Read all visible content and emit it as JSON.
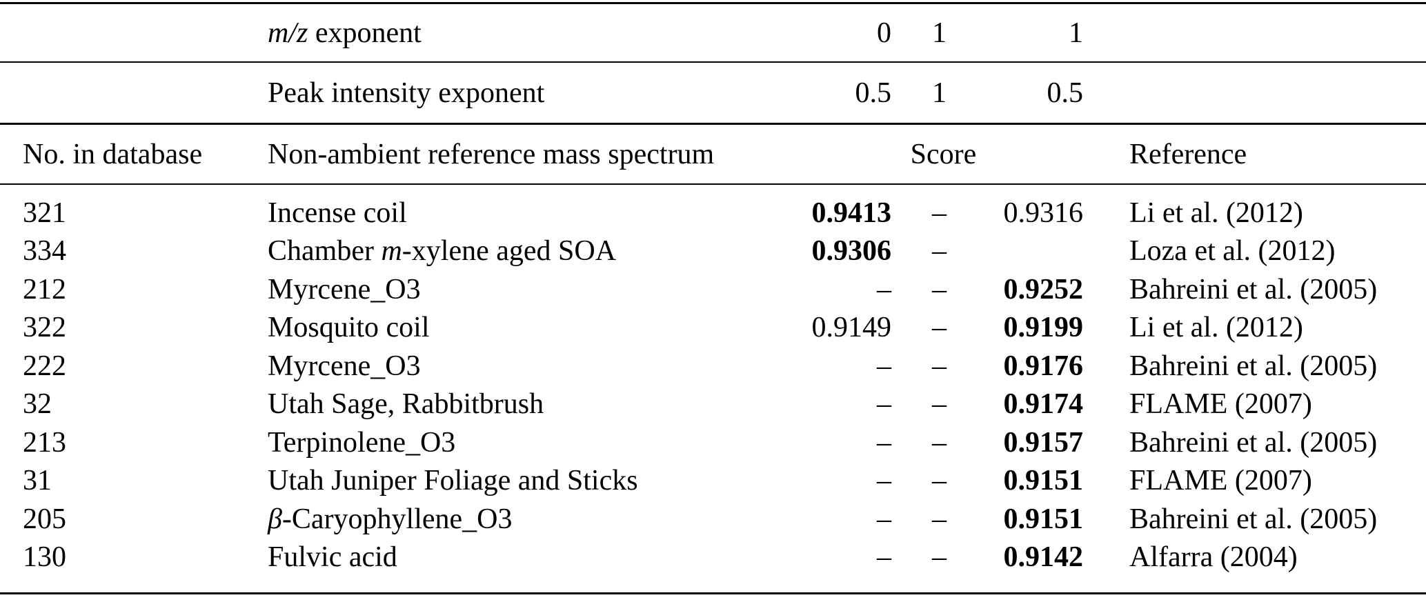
{
  "table": {
    "background": "#ffffff",
    "text_color": "#000000",
    "exponent_rows": [
      {
        "name": "mz-exponent",
        "label_segments": [
          [
            "i",
            "m/z"
          ],
          [
            "r",
            " exponent"
          ]
        ],
        "values": [
          "0",
          "1",
          "1"
        ]
      },
      {
        "name": "peak-intensity-exponent",
        "label_segments": [
          [
            "r",
            "Peak intensity exponent"
          ]
        ],
        "values": [
          "0.5",
          "1",
          "0.5"
        ]
      }
    ],
    "columns": {
      "no": "No. in database",
      "spectrum": "Non-ambient reference mass spectrum",
      "score": "Score",
      "reference": "Reference"
    },
    "rows": [
      {
        "no": "321",
        "spectrum": [
          [
            "r",
            "Incense coil"
          ]
        ],
        "scores": [
          {
            "v": "0.9413",
            "bold": true
          },
          {
            "v": "–",
            "bold": false
          },
          {
            "v": "0.9316",
            "bold": false
          }
        ],
        "reference": "Li et al. (2012)"
      },
      {
        "no": "334",
        "spectrum": [
          [
            "r",
            "Chamber "
          ],
          [
            "i",
            "m"
          ],
          [
            "r",
            "-xylene aged SOA"
          ]
        ],
        "scores": [
          {
            "v": "0.9306",
            "bold": true
          },
          {
            "v": "–",
            "bold": false
          },
          {
            "v": "",
            "bold": false
          }
        ],
        "reference": "Loza et al. (2012)"
      },
      {
        "no": "212",
        "spectrum": [
          [
            "r",
            "Myrcene_O3"
          ]
        ],
        "scores": [
          {
            "v": "–",
            "bold": false
          },
          {
            "v": "–",
            "bold": false
          },
          {
            "v": "0.9252",
            "bold": true
          }
        ],
        "reference": "Bahreini et al. (2005)"
      },
      {
        "no": "322",
        "spectrum": [
          [
            "r",
            "Mosquito coil"
          ]
        ],
        "scores": [
          {
            "v": "0.9149",
            "bold": false
          },
          {
            "v": "–",
            "bold": false
          },
          {
            "v": "0.9199",
            "bold": true
          }
        ],
        "reference": "Li et al. (2012)"
      },
      {
        "no": "222",
        "spectrum": [
          [
            "r",
            "Myrcene_O3"
          ]
        ],
        "scores": [
          {
            "v": "–",
            "bold": false
          },
          {
            "v": "–",
            "bold": false
          },
          {
            "v": "0.9176",
            "bold": true
          }
        ],
        "reference": "Bahreini et al. (2005)"
      },
      {
        "no": "32",
        "spectrum": [
          [
            "r",
            "Utah Sage, Rabbitbrush"
          ]
        ],
        "scores": [
          {
            "v": "–",
            "bold": false
          },
          {
            "v": "–",
            "bold": false
          },
          {
            "v": "0.9174",
            "bold": true
          }
        ],
        "reference": "FLAME (2007)"
      },
      {
        "no": "213",
        "spectrum": [
          [
            "r",
            "Terpinolene_O3"
          ]
        ],
        "scores": [
          {
            "v": "–",
            "bold": false
          },
          {
            "v": "–",
            "bold": false
          },
          {
            "v": "0.9157",
            "bold": true
          }
        ],
        "reference": "Bahreini et al. (2005)"
      },
      {
        "no": "31",
        "spectrum": [
          [
            "r",
            "Utah Juniper Foliage and Sticks"
          ]
        ],
        "scores": [
          {
            "v": "–",
            "bold": false
          },
          {
            "v": "–",
            "bold": false
          },
          {
            "v": "0.9151",
            "bold": true
          }
        ],
        "reference": "FLAME (2007)"
      },
      {
        "no": "205",
        "spectrum": [
          [
            "i",
            "β"
          ],
          [
            "r",
            "-Caryophyllene_O3"
          ]
        ],
        "scores": [
          {
            "v": "–",
            "bold": false
          },
          {
            "v": "–",
            "bold": false
          },
          {
            "v": "0.9151",
            "bold": true
          }
        ],
        "reference": "Bahreini et al. (2005)"
      },
      {
        "no": "130",
        "spectrum": [
          [
            "r",
            "Fulvic acid"
          ]
        ],
        "scores": [
          {
            "v": "–",
            "bold": false
          },
          {
            "v": "–",
            "bold": false
          },
          {
            "v": "0.9142",
            "bold": true
          }
        ],
        "reference": "Alfarra (2004)"
      }
    ]
  }
}
